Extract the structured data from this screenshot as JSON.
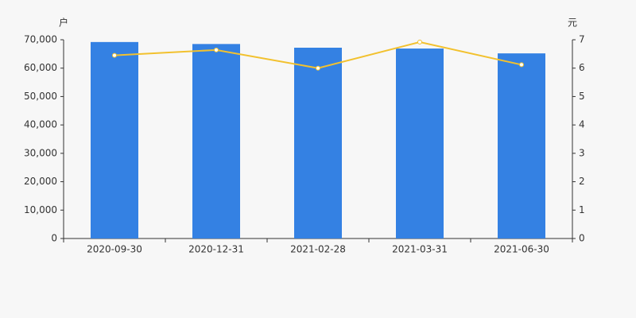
{
  "chart_data": {
    "type": "bar-line",
    "y_label": "户",
    "y2_label": "元",
    "categories": [
      "2020-09-30",
      "2020-12-31",
      "2021-02-28",
      "2021-03-31",
      "2021-06-30"
    ],
    "series": [
      {
        "type": "bar",
        "color": "#3481e3",
        "values": [
          69200,
          68500,
          67200,
          66900,
          65200
        ]
      },
      {
        "type": "line",
        "color": "#f2c12e",
        "axis": "y2",
        "values": [
          6.45,
          6.64,
          6.0,
          6.92,
          6.12
        ]
      }
    ],
    "ylim": [
      0,
      70000
    ],
    "yticks": [
      0,
      {
        "value": 10000,
        "label": "10,000"
      },
      {
        "value": 20000,
        "label": "20,000"
      },
      {
        "value": 30000,
        "label": "30,000"
      },
      {
        "value": 40000,
        "label": "40,000"
      },
      {
        "value": 50000,
        "label": "50,000"
      },
      {
        "value": 60000,
        "label": "60,000"
      },
      {
        "value": 70000,
        "label": "70,000"
      }
    ],
    "y2lim": [
      0,
      7
    ],
    "y2ticks": [
      0,
      1,
      2,
      3,
      4,
      5,
      6,
      7
    ]
  }
}
